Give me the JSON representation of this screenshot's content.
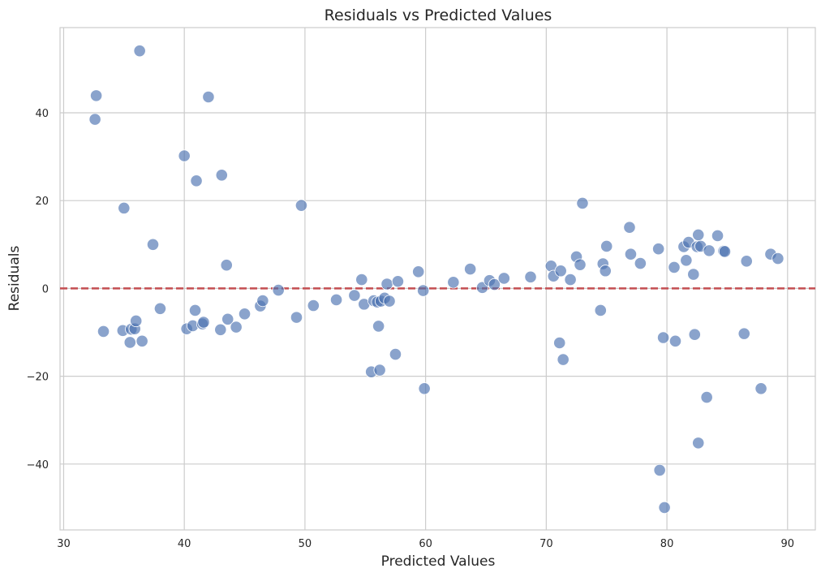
{
  "chart_data": {
    "type": "scatter",
    "title": "Residuals vs Predicted Values",
    "xlabel": "Predicted Values",
    "ylabel": "Residuals",
    "xlim": [
      29.7,
      92.3
    ],
    "ylim": [
      -55,
      59.4
    ],
    "xticks": [
      30,
      40,
      50,
      60,
      70,
      80,
      90
    ],
    "yticks": [
      -40,
      -20,
      0,
      20,
      40
    ],
    "xtick_labels": [
      "30",
      "40",
      "50",
      "60",
      "70",
      "80",
      "90"
    ],
    "ytick_labels": [
      "−40",
      "−20",
      "0",
      "20",
      "40"
    ],
    "grid": true,
    "legend": "none",
    "reference_line": {
      "y": 0,
      "style": "dashed",
      "color": "#c44e52"
    },
    "point_color": "#4c72b0",
    "points": [
      {
        "x": 32.6,
        "y": 38.5
      },
      {
        "x": 32.7,
        "y": 43.9
      },
      {
        "x": 33.3,
        "y": -9.8
      },
      {
        "x": 34.9,
        "y": -9.6
      },
      {
        "x": 35.0,
        "y": 18.3
      },
      {
        "x": 35.5,
        "y": -12.3
      },
      {
        "x": 35.6,
        "y": -9.3
      },
      {
        "x": 35.9,
        "y": -9.2
      },
      {
        "x": 36.0,
        "y": -7.4
      },
      {
        "x": 36.3,
        "y": 54.1
      },
      {
        "x": 36.5,
        "y": -12.0
      },
      {
        "x": 37.4,
        "y": 10.0
      },
      {
        "x": 38.0,
        "y": -4.6
      },
      {
        "x": 40.0,
        "y": 30.2
      },
      {
        "x": 40.2,
        "y": -9.2
      },
      {
        "x": 40.7,
        "y": -8.5
      },
      {
        "x": 40.9,
        "y": -5.0
      },
      {
        "x": 41.0,
        "y": 24.5
      },
      {
        "x": 41.5,
        "y": -8.1
      },
      {
        "x": 41.6,
        "y": -7.7
      },
      {
        "x": 42.0,
        "y": 43.6
      },
      {
        "x": 43.0,
        "y": -9.4
      },
      {
        "x": 43.1,
        "y": 25.8
      },
      {
        "x": 43.5,
        "y": 5.3
      },
      {
        "x": 43.6,
        "y": -7.0
      },
      {
        "x": 44.3,
        "y": -8.8
      },
      {
        "x": 45.0,
        "y": -5.8
      },
      {
        "x": 46.3,
        "y": -4.0
      },
      {
        "x": 46.5,
        "y": -2.8
      },
      {
        "x": 47.8,
        "y": -0.4
      },
      {
        "x": 49.3,
        "y": -6.6
      },
      {
        "x": 49.7,
        "y": 18.9
      },
      {
        "x": 50.7,
        "y": -3.9
      },
      {
        "x": 52.6,
        "y": -2.6
      },
      {
        "x": 54.1,
        "y": -1.6
      },
      {
        "x": 54.7,
        "y": 2.0
      },
      {
        "x": 54.9,
        "y": -3.6
      },
      {
        "x": 55.5,
        "y": -19.0
      },
      {
        "x": 55.7,
        "y": -2.8
      },
      {
        "x": 56.0,
        "y": -3.1
      },
      {
        "x": 56.1,
        "y": -8.6
      },
      {
        "x": 56.2,
        "y": -18.6
      },
      {
        "x": 56.3,
        "y": -2.9
      },
      {
        "x": 56.6,
        "y": -2.2
      },
      {
        "x": 56.8,
        "y": 1.0
      },
      {
        "x": 57.0,
        "y": -2.9
      },
      {
        "x": 57.5,
        "y": -15.0
      },
      {
        "x": 57.7,
        "y": 1.6
      },
      {
        "x": 59.4,
        "y": 3.8
      },
      {
        "x": 59.8,
        "y": -0.5
      },
      {
        "x": 59.9,
        "y": -22.8
      },
      {
        "x": 62.3,
        "y": 1.4
      },
      {
        "x": 63.7,
        "y": 4.4
      },
      {
        "x": 64.7,
        "y": 0.2
      },
      {
        "x": 65.3,
        "y": 1.8
      },
      {
        "x": 65.7,
        "y": 0.9
      },
      {
        "x": 66.5,
        "y": 2.3
      },
      {
        "x": 68.7,
        "y": 2.6
      },
      {
        "x": 70.4,
        "y": 5.1
      },
      {
        "x": 70.6,
        "y": 2.8
      },
      {
        "x": 71.1,
        "y": -12.4
      },
      {
        "x": 71.2,
        "y": 4.0
      },
      {
        "x": 71.4,
        "y": -16.2
      },
      {
        "x": 72.0,
        "y": 2.0
      },
      {
        "x": 72.5,
        "y": 7.2
      },
      {
        "x": 72.8,
        "y": 5.4
      },
      {
        "x": 73.0,
        "y": 19.4
      },
      {
        "x": 74.5,
        "y": -5.0
      },
      {
        "x": 74.7,
        "y": 5.6
      },
      {
        "x": 74.9,
        "y": 4.0
      },
      {
        "x": 75.0,
        "y": 9.6
      },
      {
        "x": 76.9,
        "y": 13.9
      },
      {
        "x": 77.0,
        "y": 7.8
      },
      {
        "x": 77.8,
        "y": 5.7
      },
      {
        "x": 79.3,
        "y": 9.0
      },
      {
        "x": 79.4,
        "y": -41.4
      },
      {
        "x": 79.7,
        "y": -11.2
      },
      {
        "x": 79.8,
        "y": -49.9
      },
      {
        "x": 80.6,
        "y": 4.8
      },
      {
        "x": 80.7,
        "y": -12.0
      },
      {
        "x": 81.4,
        "y": 9.5
      },
      {
        "x": 81.6,
        "y": 6.4
      },
      {
        "x": 81.8,
        "y": 10.5
      },
      {
        "x": 82.2,
        "y": 3.2
      },
      {
        "x": 82.3,
        "y": -10.5
      },
      {
        "x": 82.5,
        "y": 9.5
      },
      {
        "x": 82.6,
        "y": -35.2
      },
      {
        "x": 82.6,
        "y": 12.2
      },
      {
        "x": 82.8,
        "y": 9.6
      },
      {
        "x": 83.3,
        "y": -24.8
      },
      {
        "x": 83.5,
        "y": 8.6
      },
      {
        "x": 84.2,
        "y": 12.0
      },
      {
        "x": 84.7,
        "y": 8.5
      },
      {
        "x": 84.8,
        "y": 8.4
      },
      {
        "x": 86.4,
        "y": -10.3
      },
      {
        "x": 86.6,
        "y": 6.2
      },
      {
        "x": 87.8,
        "y": -22.8
      },
      {
        "x": 88.6,
        "y": 7.8
      },
      {
        "x": 89.2,
        "y": 6.8
      }
    ]
  }
}
